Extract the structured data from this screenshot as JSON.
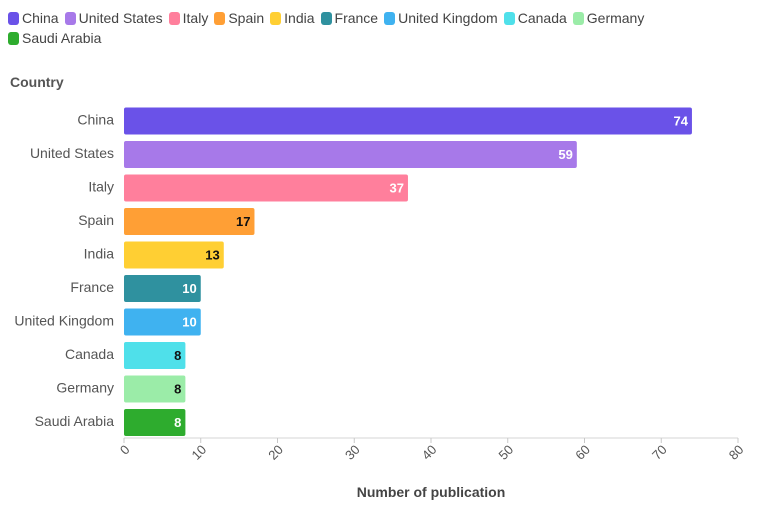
{
  "chart_data": {
    "type": "bar",
    "orientation": "horizontal",
    "categories": [
      "China",
      "United States",
      "Italy",
      "Spain",
      "India",
      "France",
      "United Kingdom",
      "Canada",
      "Germany",
      "Saudi Arabia"
    ],
    "values": [
      74,
      59,
      37,
      17,
      13,
      10,
      10,
      8,
      8,
      8
    ],
    "colors": [
      "#6a52e8",
      "#a779e9",
      "#ff7f9c",
      "#ff9f35",
      "#ffcf33",
      "#2f919f",
      "#3fb2f0",
      "#4fe0ea",
      "#9beca8",
      "#2eac2e"
    ],
    "value_label_colors": [
      "#ffffff",
      "#ffffff",
      "#ffffff",
      "#111111",
      "#111111",
      "#ffffff",
      "#ffffff",
      "#111111",
      "#111111",
      "#ffffff"
    ],
    "xlabel": "Number of publication",
    "ylabel": "Country",
    "xlim": [
      0,
      80
    ],
    "x_ticks": [
      0,
      10,
      20,
      30,
      40,
      50,
      60,
      70,
      80
    ],
    "x_tick_labels": [
      "0",
      "10",
      "20",
      "30",
      "40",
      "50",
      "60",
      "70",
      "80"
    ],
    "legend_position": "top-left",
    "grid": false
  }
}
